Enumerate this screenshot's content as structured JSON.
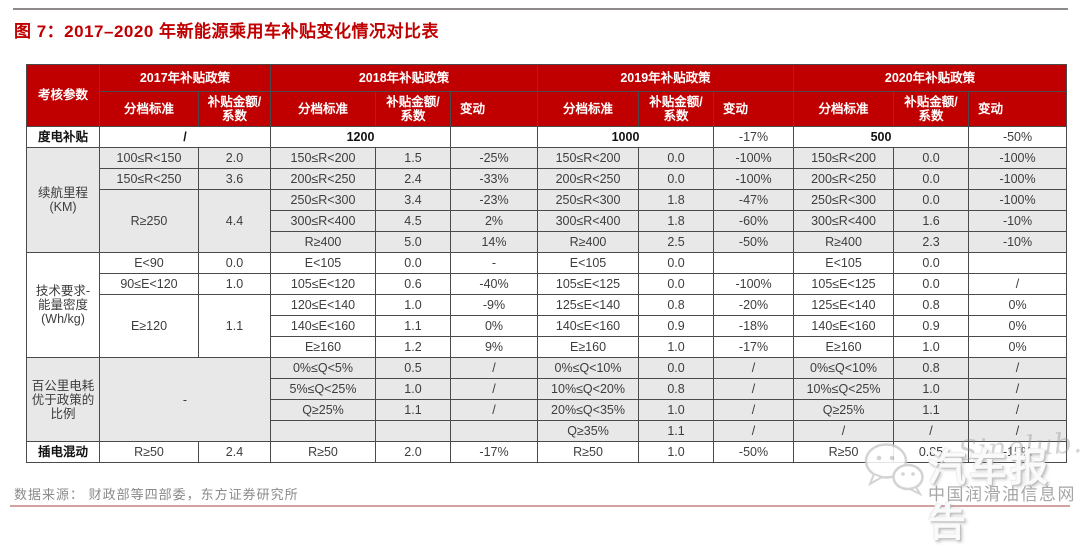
{
  "title": "图 7：2017–2020 年新能源乘用车补贴变化情况对比表",
  "source": "数据来源： 财政部等四部委，东方证券研究所",
  "watermark": {
    "brand": "汽车报告",
    "script": "Sinolub.com",
    "site": "中国润滑油信息网",
    "icon": "wechat-chat-bubbles"
  },
  "colors": {
    "header_red": "#c00000",
    "title_red": "#c00000",
    "stripe_gray": "#e8e8e8",
    "border": "#4a4a4a",
    "top_rule": "#8f8a8a",
    "bottom_rule": "#d0a2a0",
    "source_gray": "#8a8a8a"
  },
  "table": {
    "header": [
      [
        {
          "t": "考核参数",
          "rs": 2,
          "n": "param-header"
        },
        {
          "t": "2017年补贴政策",
          "cs": 2,
          "n": "year-group-2017"
        },
        {
          "t": "2018年补贴政策",
          "cs": 3,
          "n": "year-group-2018"
        },
        {
          "t": "2019年补贴政策",
          "cs": 3,
          "n": "year-group-2019"
        },
        {
          "t": "2020年补贴政策",
          "cs": 3,
          "n": "year-group-2020"
        }
      ],
      [
        {
          "t": "分档标准"
        },
        {
          "t": "补贴金额/\n系数"
        },
        {
          "t": "分档标准"
        },
        {
          "t": "补贴金额/\n系数"
        },
        {
          "t": "变动",
          "c": "chg-h"
        },
        {
          "t": "分档标准"
        },
        {
          "t": "补贴金额/\n系数"
        },
        {
          "t": "变动",
          "c": "chg-h"
        },
        {
          "t": "分档标准"
        },
        {
          "t": "补贴金额/\n系数"
        },
        {
          "t": "变动",
          "c": "chg-h"
        }
      ]
    ],
    "body": [
      [
        {
          "t": "度电补贴",
          "c": "b",
          "n": "row-label"
        },
        {
          "t": "/",
          "cs": 2,
          "c": "b"
        },
        {
          "t": "1200",
          "cs": 2,
          "c": "b"
        },
        {
          "t": ""
        },
        {
          "t": "1000",
          "cs": 2,
          "c": "b"
        },
        {
          "t": "-17%"
        },
        {
          "t": "500",
          "cs": 2,
          "c": "b"
        },
        {
          "t": "-50%"
        }
      ],
      [
        {
          "t": "续航里程\n(KM)",
          "rs": 5,
          "c": "g",
          "n": "row-label"
        },
        {
          "t": "100≤R<150",
          "c": "g"
        },
        {
          "t": "2.0",
          "c": "g"
        },
        {
          "t": "150≤R<200",
          "c": "g"
        },
        {
          "t": "1.5",
          "c": "g"
        },
        {
          "t": "-25%",
          "c": "g"
        },
        {
          "t": "150≤R<200",
          "c": "g"
        },
        {
          "t": "0.0",
          "c": "g"
        },
        {
          "t": "-100%",
          "c": "g"
        },
        {
          "t": "150≤R<200",
          "c": "g"
        },
        {
          "t": "0.0",
          "c": "g"
        },
        {
          "t": "-100%",
          "c": "g"
        }
      ],
      [
        {
          "t": "150≤R<250",
          "c": "g"
        },
        {
          "t": "3.6",
          "c": "g"
        },
        {
          "t": "200≤R<250",
          "c": "g"
        },
        {
          "t": "2.4",
          "c": "g"
        },
        {
          "t": "-33%",
          "c": "g"
        },
        {
          "t": "200≤R<250",
          "c": "g"
        },
        {
          "t": "0.0",
          "c": "g"
        },
        {
          "t": "-100%",
          "c": "g"
        },
        {
          "t": "200≤R<250",
          "c": "g"
        },
        {
          "t": "0.0",
          "c": "g"
        },
        {
          "t": "-100%",
          "c": "g"
        }
      ],
      [
        {
          "t": "R≥250",
          "rs": 3,
          "c": "g"
        },
        {
          "t": "4.4",
          "rs": 3,
          "c": "g"
        },
        {
          "t": "250≤R<300",
          "c": "g"
        },
        {
          "t": "3.4",
          "c": "g"
        },
        {
          "t": "-23%",
          "c": "g"
        },
        {
          "t": "250≤R<300",
          "c": "g"
        },
        {
          "t": "1.8",
          "c": "g"
        },
        {
          "t": "-47%",
          "c": "g"
        },
        {
          "t": "250≤R<300",
          "c": "g"
        },
        {
          "t": "0.0",
          "c": "g"
        },
        {
          "t": "-100%",
          "c": "g"
        }
      ],
      [
        {
          "t": "300≤R<400",
          "c": "g"
        },
        {
          "t": "4.5",
          "c": "g"
        },
        {
          "t": "2%",
          "c": "g"
        },
        {
          "t": "300≤R<400",
          "c": "g"
        },
        {
          "t": "1.8",
          "c": "g"
        },
        {
          "t": "-60%",
          "c": "g"
        },
        {
          "t": "300≤R<400",
          "c": "g"
        },
        {
          "t": "1.6",
          "c": "g"
        },
        {
          "t": "-10%",
          "c": "g"
        }
      ],
      [
        {
          "t": "R≥400",
          "c": "g"
        },
        {
          "t": "5.0",
          "c": "g"
        },
        {
          "t": "14%",
          "c": "g"
        },
        {
          "t": "R≥400",
          "c": "g"
        },
        {
          "t": "2.5",
          "c": "g"
        },
        {
          "t": "-50%",
          "c": "g"
        },
        {
          "t": "R≥400",
          "c": "g"
        },
        {
          "t": "2.3",
          "c": "g"
        },
        {
          "t": "-10%",
          "c": "g"
        }
      ],
      [
        {
          "t": "技术要求-\n能量密度\n(Wh/kg)",
          "rs": 5,
          "n": "row-label"
        },
        {
          "t": "E<90"
        },
        {
          "t": "0.0"
        },
        {
          "t": "E<105"
        },
        {
          "t": "0.0"
        },
        {
          "t": "-"
        },
        {
          "t": "E<105"
        },
        {
          "t": "0.0"
        },
        {
          "t": ""
        },
        {
          "t": "E<105"
        },
        {
          "t": "0.0"
        },
        {
          "t": ""
        }
      ],
      [
        {
          "t": "90≤E<120"
        },
        {
          "t": "1.0"
        },
        {
          "t": "105≤E<120"
        },
        {
          "t": "0.6"
        },
        {
          "t": "-40%"
        },
        {
          "t": "105≤E<125"
        },
        {
          "t": "0.0"
        },
        {
          "t": "-100%"
        },
        {
          "t": "105≤E<125"
        },
        {
          "t": "0.0"
        },
        {
          "t": "/"
        }
      ],
      [
        {
          "t": "E≥120",
          "rs": 3
        },
        {
          "t": "1.1",
          "rs": 3
        },
        {
          "t": "120≤E<140"
        },
        {
          "t": "1.0"
        },
        {
          "t": "-9%"
        },
        {
          "t": "125≤E<140"
        },
        {
          "t": "0.8"
        },
        {
          "t": "-20%"
        },
        {
          "t": "125≤E<140"
        },
        {
          "t": "0.8"
        },
        {
          "t": "0%"
        }
      ],
      [
        {
          "t": "140≤E<160"
        },
        {
          "t": "1.1"
        },
        {
          "t": "0%"
        },
        {
          "t": "140≤E<160"
        },
        {
          "t": "0.9"
        },
        {
          "t": "-18%"
        },
        {
          "t": "140≤E<160"
        },
        {
          "t": "0.9"
        },
        {
          "t": "0%"
        }
      ],
      [
        {
          "t": "E≥160"
        },
        {
          "t": "1.2"
        },
        {
          "t": "9%"
        },
        {
          "t": "E≥160"
        },
        {
          "t": "1.0"
        },
        {
          "t": "-17%"
        },
        {
          "t": "E≥160"
        },
        {
          "t": "1.0"
        },
        {
          "t": "0%"
        }
      ],
      [
        {
          "t": "百公里电耗\n优于政策的\n比例",
          "rs": 4,
          "c": "g",
          "n": "row-label"
        },
        {
          "t": "-",
          "rs": 4,
          "cs": 2,
          "c": "g"
        },
        {
          "t": "0%≤Q<5%",
          "c": "g"
        },
        {
          "t": "0.5",
          "c": "g"
        },
        {
          "t": "/",
          "c": "g"
        },
        {
          "t": "0%≤Q<10%",
          "c": "g"
        },
        {
          "t": "0.0",
          "c": "g"
        },
        {
          "t": "/",
          "c": "g"
        },
        {
          "t": "0%≤Q<10%",
          "c": "g"
        },
        {
          "t": "0.8",
          "c": "g"
        },
        {
          "t": "/",
          "c": "g"
        }
      ],
      [
        {
          "t": "5%≤Q<25%",
          "c": "g"
        },
        {
          "t": "1.0",
          "c": "g"
        },
        {
          "t": "/",
          "c": "g"
        },
        {
          "t": "10%≤Q<20%",
          "c": "g"
        },
        {
          "t": "0.8",
          "c": "g"
        },
        {
          "t": "/",
          "c": "g"
        },
        {
          "t": "10%≤Q<25%",
          "c": "g"
        },
        {
          "t": "1.0",
          "c": "g"
        },
        {
          "t": "/",
          "c": "g"
        }
      ],
      [
        {
          "t": "Q≥25%",
          "c": "g"
        },
        {
          "t": "1.1",
          "c": "g"
        },
        {
          "t": "/",
          "c": "g"
        },
        {
          "t": "20%≤Q<35%",
          "c": "g"
        },
        {
          "t": "1.0",
          "c": "g"
        },
        {
          "t": "/",
          "c": "g"
        },
        {
          "t": "Q≥25%",
          "c": "g"
        },
        {
          "t": "1.1",
          "c": "g"
        },
        {
          "t": "/",
          "c": "g"
        }
      ],
      [
        {
          "t": "",
          "c": "g"
        },
        {
          "t": "",
          "c": "g"
        },
        {
          "t": "",
          "c": "g"
        },
        {
          "t": "Q≥35%",
          "c": "g"
        },
        {
          "t": "1.1",
          "c": "g"
        },
        {
          "t": "/",
          "c": "g"
        },
        {
          "t": "/",
          "c": "g"
        },
        {
          "t": "/",
          "c": "g"
        },
        {
          "t": "/",
          "c": "g"
        }
      ],
      [
        {
          "t": "插电混动",
          "c": "b",
          "n": "row-label"
        },
        {
          "t": "R≥50"
        },
        {
          "t": "2.4"
        },
        {
          "t": "R≥50"
        },
        {
          "t": "2.0"
        },
        {
          "t": "-17%"
        },
        {
          "t": "R≥50"
        },
        {
          "t": "1.0"
        },
        {
          "t": "-50%"
        },
        {
          "t": "R≥50"
        },
        {
          "t": "0.85"
        },
        {
          "t": "-15%"
        }
      ]
    ]
  }
}
